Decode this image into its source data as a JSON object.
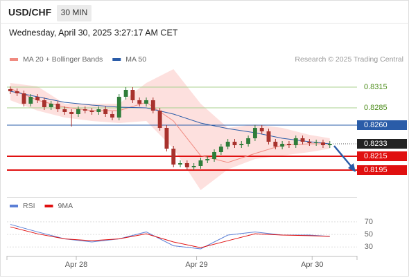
{
  "header": {
    "symbol": "USD/CHF",
    "timeframe": "30 MIN",
    "datetime": "Wednesday, April 30, 2025 3:27:17 AM CET",
    "credit": "Research © 2025 Trading Central"
  },
  "chart_data": [
    {
      "type": "candlestick",
      "xlim": [
        -0.5,
        51
      ],
      "ylim": [
        0.8156,
        0.8346
      ],
      "up_color": "#2f7d3a",
      "down_color": "#a8322d",
      "x": [
        0,
        1,
        2,
        3,
        4,
        5,
        6,
        7,
        8,
        9,
        10,
        11,
        12,
        13,
        14,
        15,
        16,
        17,
        18,
        19,
        20,
        21,
        22,
        23,
        24,
        25,
        26,
        27,
        28,
        29,
        30,
        31,
        32,
        33,
        34,
        35,
        36,
        37,
        38,
        39,
        40,
        41,
        42,
        43,
        44,
        45,
        46,
        47
      ],
      "open": [
        0.8312,
        0.8309,
        0.8306,
        0.8291,
        0.8301,
        0.8296,
        0.8286,
        0.8291,
        0.8283,
        0.8279,
        0.8276,
        0.8283,
        0.8281,
        0.8279,
        0.8283,
        0.8276,
        0.8271,
        0.8301,
        0.8311,
        0.8296,
        0.8291,
        0.8296,
        0.8281,
        0.8256,
        0.8226,
        0.8203,
        0.8205,
        0.8199,
        0.8201,
        0.8209,
        0.8211,
        0.8221,
        0.8229,
        0.8236,
        0.8231,
        0.8233,
        0.8241,
        0.8256,
        0.8251,
        0.8236,
        0.8229,
        0.8233,
        0.8231,
        0.8241,
        0.8236,
        0.8234,
        0.8235,
        0.8231
      ],
      "high": [
        0.8316,
        0.8313,
        0.831,
        0.8305,
        0.8305,
        0.83,
        0.8295,
        0.8295,
        0.8287,
        0.8283,
        0.8287,
        0.8287,
        0.8285,
        0.8287,
        0.8287,
        0.828,
        0.8305,
        0.8315,
        0.8315,
        0.83,
        0.83,
        0.83,
        0.8285,
        0.826,
        0.823,
        0.8209,
        0.8209,
        0.8205,
        0.8213,
        0.8215,
        0.8225,
        0.8233,
        0.824,
        0.824,
        0.8237,
        0.8245,
        0.826,
        0.826,
        0.8255,
        0.824,
        0.8237,
        0.8237,
        0.8245,
        0.8245,
        0.824,
        0.8239,
        0.8239,
        0.8237
      ],
      "low": [
        0.8305,
        0.8302,
        0.8287,
        0.8287,
        0.8292,
        0.8282,
        0.8282,
        0.8279,
        0.8275,
        0.8258,
        0.8272,
        0.8277,
        0.8275,
        0.8275,
        0.8272,
        0.8267,
        0.8267,
        0.8297,
        0.8292,
        0.8287,
        0.8287,
        0.8277,
        0.8252,
        0.8222,
        0.8199,
        0.8199,
        0.8195,
        0.8195,
        0.8197,
        0.8205,
        0.8207,
        0.8217,
        0.8225,
        0.8227,
        0.8227,
        0.8229,
        0.8237,
        0.8247,
        0.8232,
        0.8225,
        0.8225,
        0.8227,
        0.8227,
        0.8232,
        0.823,
        0.823,
        0.8227,
        0.8227
      ],
      "close": [
        0.8309,
        0.8306,
        0.8291,
        0.8301,
        0.8296,
        0.8286,
        0.8291,
        0.8283,
        0.8279,
        0.8276,
        0.8283,
        0.8281,
        0.8279,
        0.8283,
        0.8276,
        0.8271,
        0.8301,
        0.8311,
        0.8296,
        0.8291,
        0.8296,
        0.8281,
        0.8256,
        0.8226,
        0.8203,
        0.8205,
        0.8199,
        0.8201,
        0.8209,
        0.8211,
        0.8221,
        0.8229,
        0.8236,
        0.8231,
        0.8233,
        0.8241,
        0.8256,
        0.8251,
        0.8236,
        0.8229,
        0.8233,
        0.8231,
        0.8241,
        0.8236,
        0.8234,
        0.8235,
        0.8231,
        0.8233
      ],
      "series": [
        {
          "name": "MA 20 + Bollinger Bands",
          "color": "#f08a80",
          "band_color": "#fde0de",
          "x": [
            0,
            4,
            8,
            12,
            16,
            20,
            24,
            28,
            32,
            36,
            40,
            44,
            47
          ],
          "values": [
            0.8313,
            0.8296,
            0.8286,
            0.8281,
            0.8281,
            0.8293,
            0.8266,
            0.8216,
            0.8206,
            0.8219,
            0.8231,
            0.8233,
            0.8233
          ],
          "upper": [
            0.8321,
            0.8316,
            0.8291,
            0.8291,
            0.8291,
            0.8321,
            0.8341,
            0.8291,
            0.8256,
            0.8261,
            0.8256,
            0.8246,
            0.8241
          ],
          "lower": [
            0.8296,
            0.8281,
            0.8271,
            0.8266,
            0.8263,
            0.8266,
            0.8226,
            0.8166,
            0.8196,
            0.8211,
            0.8216,
            0.8221,
            0.8226
          ]
        },
        {
          "name": "MA 50",
          "color": "#2a5ca8",
          "x": [
            0,
            4,
            8,
            12,
            16,
            20,
            24,
            28,
            32,
            36,
            40,
            44,
            47
          ],
          "values": [
            0.8309,
            0.8301,
            0.8293,
            0.8289,
            0.8286,
            0.8285,
            0.8276,
            0.8263,
            0.8255,
            0.8249,
            0.8241,
            0.8236,
            0.8233
          ]
        }
      ],
      "levels": [
        {
          "value": 0.8315,
          "label": "0.8315",
          "color": "#a8d08d",
          "text_color": "#4c8c1a",
          "style": "text"
        },
        {
          "value": 0.8285,
          "label": "0.8285",
          "color": "#a8d08d",
          "text_color": "#4c8c1a",
          "style": "text"
        },
        {
          "value": 0.826,
          "label": "0.8260",
          "color": "#2a5ca8",
          "text_color": "#ffffff",
          "style": "box"
        },
        {
          "value": 0.8233,
          "label": "0.8233",
          "color": "#222222",
          "text_color": "#ffffff",
          "style": "last"
        },
        {
          "value": 0.8215,
          "label": "0.8215",
          "color": "#e01010",
          "text_color": "#ffffff",
          "style": "box"
        },
        {
          "value": 0.8195,
          "label": "0.8195",
          "color": "#e01010",
          "text_color": "#ffffff",
          "style": "box"
        }
      ]
    },
    {
      "type": "line",
      "xlim": [
        -0.5,
        51
      ],
      "ylim": [
        16,
        82
      ],
      "yticks": [
        70,
        50,
        30
      ],
      "grid": true,
      "xticks": [
        {
          "value": 9.7,
          "label": "Apr 28"
        },
        {
          "value": 27.4,
          "label": "Apr 29"
        },
        {
          "value": 44.4,
          "label": "Apr 30"
        }
      ],
      "series": [
        {
          "name": "RSI",
          "color": "#5b7fd6",
          "x": [
            0,
            4,
            8,
            12,
            16,
            20,
            24,
            28,
            32,
            36,
            40,
            44,
            47
          ],
          "values": [
            66,
            54,
            43,
            38,
            43,
            54,
            32,
            27,
            49,
            54,
            49,
            49,
            47
          ]
        },
        {
          "name": "9MA",
          "color": "#e01010",
          "x": [
            0,
            4,
            8,
            12,
            16,
            20,
            24,
            28,
            32,
            36,
            40,
            44,
            47
          ],
          "values": [
            62,
            51,
            43,
            40,
            43,
            51,
            38,
            29,
            40,
            51,
            49,
            48,
            47
          ]
        }
      ]
    }
  ]
}
